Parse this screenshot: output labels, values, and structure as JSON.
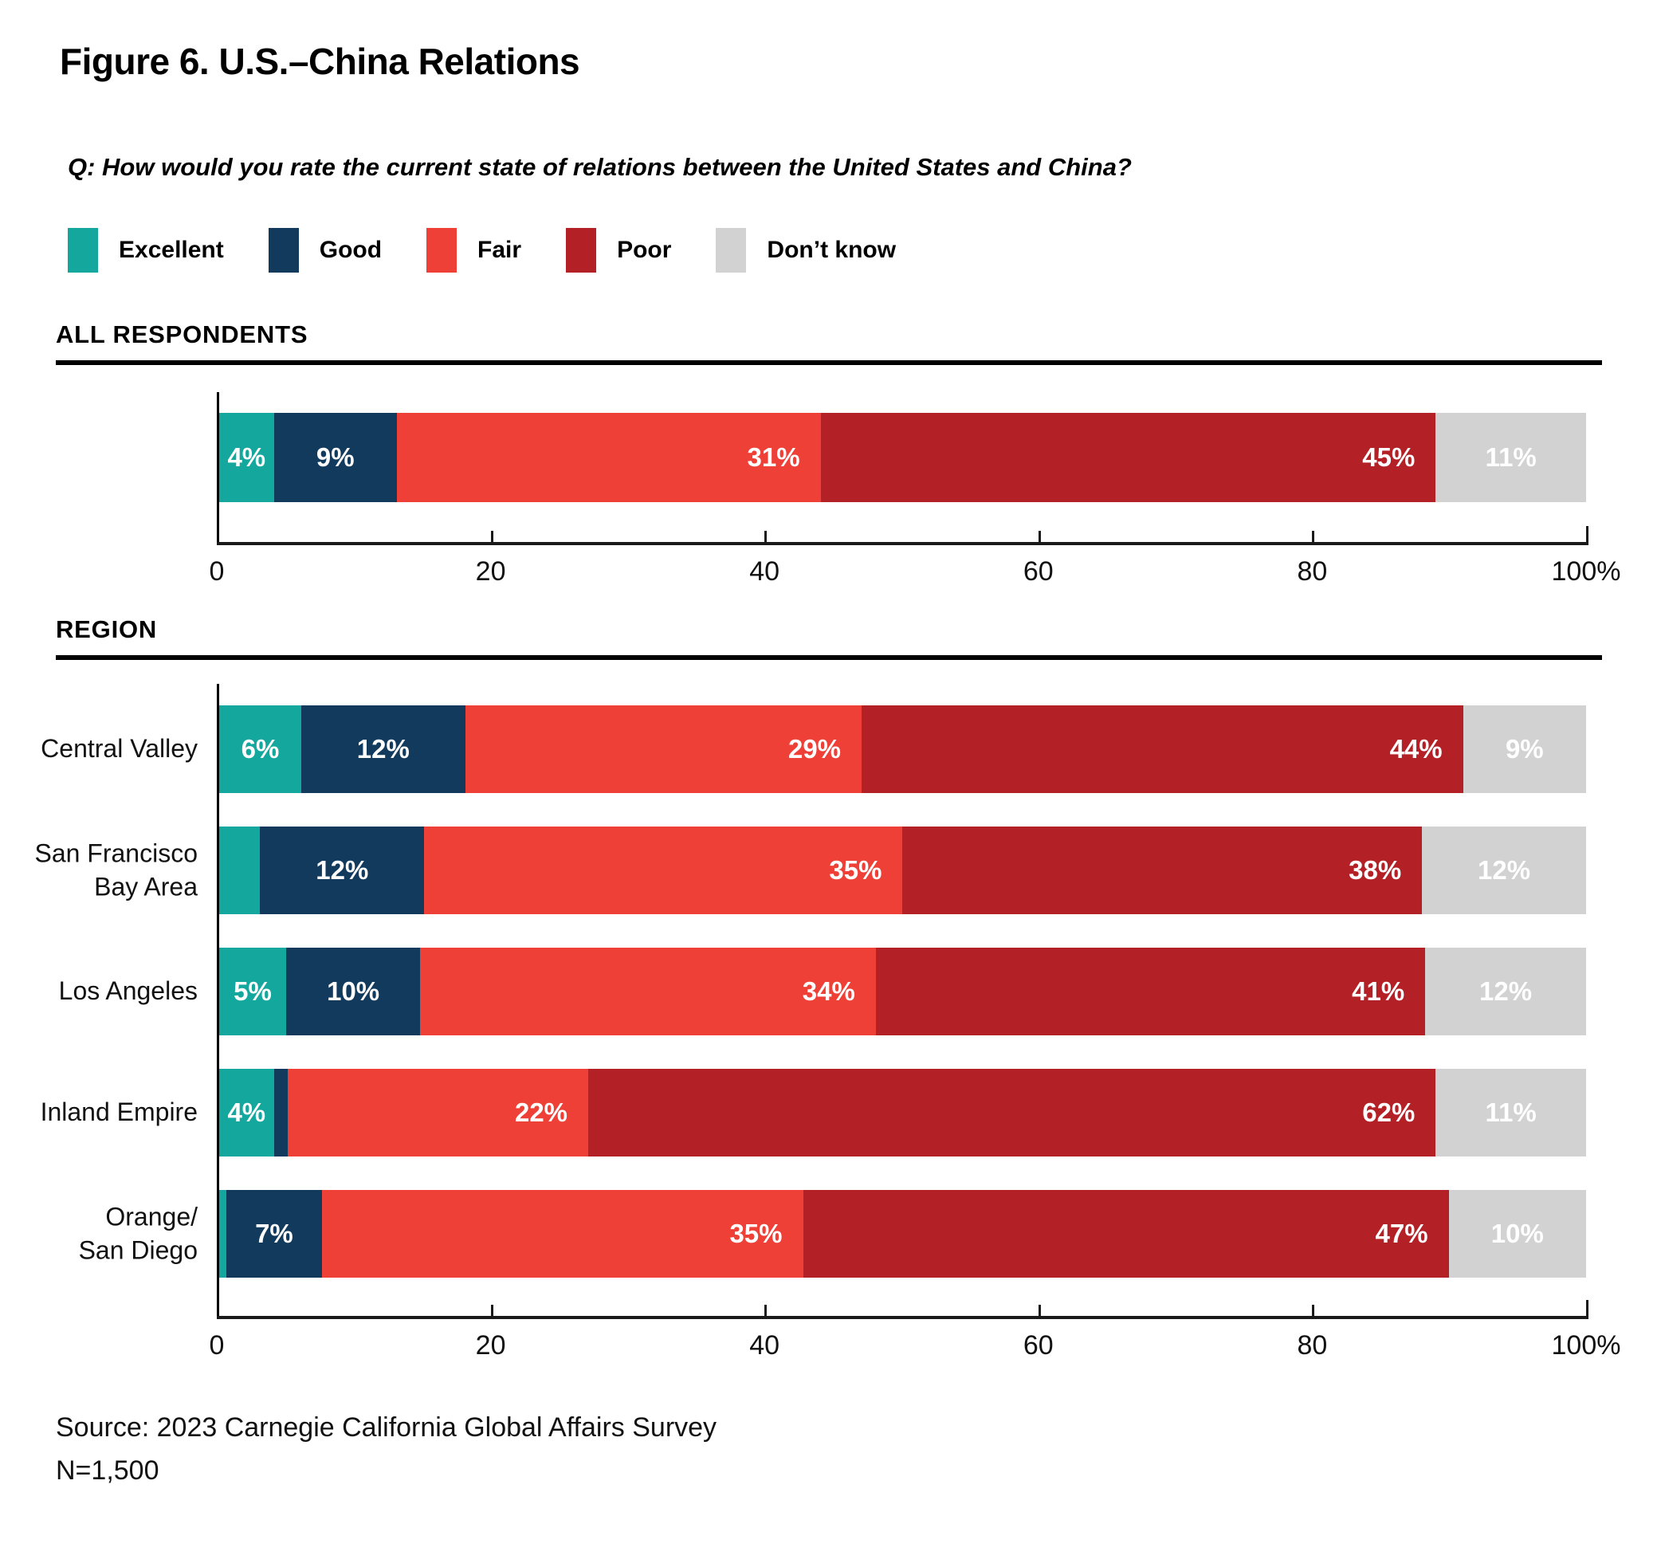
{
  "title": "Figure 6. U.S.–China Relations",
  "question": "Q: How would you rate the current state of relations between the United States and China?",
  "legend": [
    {
      "key": "excellent",
      "label": "Excellent"
    },
    {
      "key": "good",
      "label": "Good"
    },
    {
      "key": "fair",
      "label": "Fair"
    },
    {
      "key": "poor",
      "label": "Poor"
    },
    {
      "key": "dont_know",
      "label": "Don’t know"
    }
  ],
  "colors": {
    "excellent": "#14A79E",
    "good": "#113A5D",
    "fair": "#EE4036",
    "poor": "#B32025",
    "dont_know": "#D2D2D3"
  },
  "sections": {
    "all": {
      "label": "ALL RESPONDENTS"
    },
    "region": {
      "label": "REGION"
    }
  },
  "source": {
    "line1": "Source: 2023 Carnegie California Global Affairs Survey",
    "line2": "N=1,500"
  },
  "chart_data": [
    {
      "id": "all",
      "type": "bar",
      "stacked": true,
      "orientation": "horizontal",
      "title": "ALL RESPONDENTS",
      "categories": [
        ""
      ],
      "series": [
        {
          "key": "excellent",
          "name": "Excellent",
          "values": [
            4
          ]
        },
        {
          "key": "good",
          "name": "Good",
          "values": [
            9
          ]
        },
        {
          "key": "fair",
          "name": "Fair",
          "values": [
            31
          ]
        },
        {
          "key": "poor",
          "name": "Poor",
          "values": [
            45
          ]
        },
        {
          "key": "dont_know",
          "name": "Don’t know",
          "values": [
            11
          ]
        }
      ],
      "xlim": [
        0,
        100
      ],
      "x_ticks": [
        {
          "value": 0,
          "label": "0"
        },
        {
          "value": 20,
          "label": "20"
        },
        {
          "value": 40,
          "label": "40"
        },
        {
          "value": 60,
          "label": "60"
        },
        {
          "value": 80,
          "label": "80"
        },
        {
          "value": 100,
          "label": "100%"
        }
      ],
      "value_suffix": "%",
      "label_min_value": 4,
      "grid": false,
      "legend_position": "top"
    },
    {
      "id": "region",
      "type": "bar",
      "stacked": true,
      "orientation": "horizontal",
      "title": "REGION",
      "categories": [
        "Central Valley",
        "San Francisco\nBay Area",
        "Los Angeles",
        "Inland Empire",
        "Orange/\nSan Diego"
      ],
      "series": [
        {
          "key": "excellent",
          "name": "Excellent",
          "values": [
            6,
            3,
            5,
            4,
            0.5
          ]
        },
        {
          "key": "good",
          "name": "Good",
          "values": [
            12,
            12,
            10,
            1,
            7
          ]
        },
        {
          "key": "fair",
          "name": "Fair",
          "values": [
            29,
            35,
            34,
            22,
            35
          ]
        },
        {
          "key": "poor",
          "name": "Poor",
          "values": [
            44,
            38,
            41,
            62,
            47
          ]
        },
        {
          "key": "dont_know",
          "name": "Don’t know",
          "values": [
            9,
            12,
            12,
            11,
            10
          ]
        }
      ],
      "xlim": [
        0,
        100
      ],
      "x_ticks": [
        {
          "value": 0,
          "label": "0"
        },
        {
          "value": 20,
          "label": "20"
        },
        {
          "value": 40,
          "label": "40"
        },
        {
          "value": 60,
          "label": "60"
        },
        {
          "value": 80,
          "label": "80"
        },
        {
          "value": 100,
          "label": "100%"
        }
      ],
      "value_suffix": "%",
      "label_min_value": 4,
      "grid": false,
      "legend_position": "top"
    }
  ]
}
